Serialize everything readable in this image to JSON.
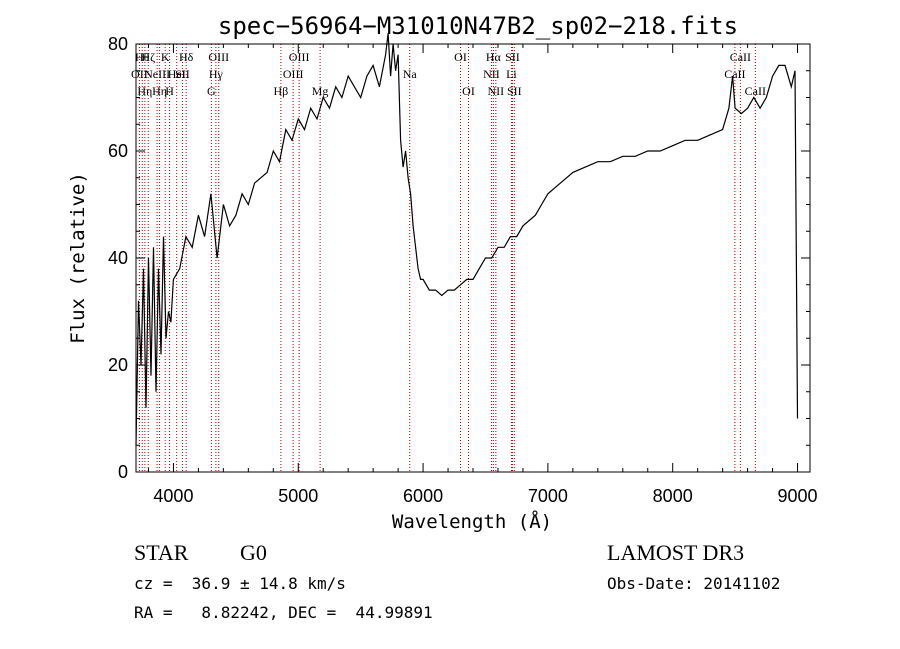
{
  "chart_data": {
    "type": "line",
    "title": "spec−56964−M31010N47B2_sp02−218.fits",
    "xlabel": "Wavelength (Å)",
    "ylabel": "Flux (relative)",
    "xlim": [
      3700,
      9100
    ],
    "ylim": [
      0,
      80
    ],
    "xticks": [
      4000,
      5000,
      6000,
      7000,
      8000,
      9000
    ],
    "yticks": [
      0,
      20,
      40,
      60,
      80
    ],
    "series": [
      {
        "name": "flux",
        "x": [
          3700,
          3720,
          3740,
          3760,
          3780,
          3800,
          3820,
          3840,
          3860,
          3880,
          3900,
          3920,
          3940,
          3960,
          3980,
          4000,
          4050,
          4100,
          4150,
          4200,
          4250,
          4300,
          4350,
          4400,
          4450,
          4500,
          4550,
          4600,
          4650,
          4700,
          4750,
          4800,
          4850,
          4900,
          4950,
          5000,
          5050,
          5100,
          5150,
          5200,
          5250,
          5300,
          5350,
          5400,
          5450,
          5500,
          5550,
          5600,
          5650,
          5700,
          5720,
          5740,
          5760,
          5780,
          5800,
          5820,
          5840,
          5860,
          5880,
          5900,
          5920,
          5940,
          5960,
          5980,
          6000,
          6050,
          6100,
          6150,
          6200,
          6250,
          6300,
          6350,
          6400,
          6450,
          6500,
          6550,
          6600,
          6650,
          6700,
          6750,
          6800,
          6850,
          6900,
          6950,
          7000,
          7100,
          7200,
          7300,
          7400,
          7500,
          7600,
          7700,
          7800,
          7900,
          8000,
          8100,
          8200,
          8300,
          8400,
          8450,
          8480,
          8500,
          8550,
          8600,
          8650,
          8700,
          8750,
          8800,
          8850,
          8900,
          8950,
          8980,
          9000
        ],
        "y": [
          5,
          32,
          20,
          38,
          12,
          40,
          18,
          42,
          15,
          38,
          22,
          44,
          25,
          30,
          28,
          36,
          38,
          44,
          42,
          48,
          44,
          52,
          40,
          50,
          46,
          48,
          52,
          50,
          54,
          55,
          56,
          60,
          58,
          64,
          62,
          66,
          64,
          68,
          66,
          70,
          68,
          72,
          70,
          74,
          72,
          70,
          74,
          76,
          72,
          78,
          82,
          74,
          80,
          75,
          78,
          62,
          57,
          60,
          55,
          52,
          46,
          42,
          38,
          36,
          36,
          34,
          34,
          33,
          34,
          34,
          35,
          36,
          36,
          38,
          40,
          40,
          42,
          42,
          44,
          44,
          46,
          47,
          48,
          50,
          52,
          54,
          56,
          57,
          58,
          58,
          59,
          59,
          60,
          60,
          61,
          62,
          62,
          63,
          64,
          68,
          74,
          68,
          67,
          68,
          70,
          68,
          70,
          74,
          76,
          76,
          72,
          75,
          10
        ]
      }
    ],
    "emission_lines": [
      {
        "wavelength": 3727,
        "label": "OII",
        "row": 2
      },
      {
        "wavelength": 3750,
        "label": "Hθ",
        "row": 1
      },
      {
        "wavelength": 3771,
        "label": "Hη",
        "row": 3
      },
      {
        "wavelength": 3798,
        "label": "Hζ",
        "row": 1
      },
      {
        "wavelength": 3869,
        "label": "NeIII",
        "row": 2
      },
      {
        "wavelength": 3889,
        "label": "Hη",
        "row": 3
      },
      {
        "wavelength": 3934,
        "label": "K",
        "row": 1
      },
      {
        "wavelength": 3969,
        "label": "H",
        "row": 3
      },
      {
        "wavelength": 4026,
        "label": "HeI",
        "row": 2
      },
      {
        "wavelength": 4072,
        "label": "SII",
        "row": 2
      },
      {
        "wavelength": 4102,
        "label": "Hδ",
        "row": 1
      },
      {
        "wavelength": 4304,
        "label": "G",
        "row": 3
      },
      {
        "wavelength": 4340,
        "label": "Hγ",
        "row": 2
      },
      {
        "wavelength": 4363,
        "label": "OIII",
        "row": 1
      },
      {
        "wavelength": 4861,
        "label": "Hβ",
        "row": 3
      },
      {
        "wavelength": 4959,
        "label": "OIII",
        "row": 2
      },
      {
        "wavelength": 5007,
        "label": "OIII",
        "row": 1
      },
      {
        "wavelength": 5175,
        "label": "Mg",
        "row": 3
      },
      {
        "wavelength": 5893,
        "label": "Na",
        "row": 2
      },
      {
        "wavelength": 6300,
        "label": "OI",
        "row": 1
      },
      {
        "wavelength": 6364,
        "label": "OI",
        "row": 3
      },
      {
        "wavelength": 6548,
        "label": "NII",
        "row": 2
      },
      {
        "wavelength": 6563,
        "label": "Hα",
        "row": 1
      },
      {
        "wavelength": 6583,
        "label": "NII",
        "row": 3
      },
      {
        "wavelength": 6708,
        "label": "Li",
        "row": 2
      },
      {
        "wavelength": 6716,
        "label": "SII",
        "row": 1
      },
      {
        "wavelength": 6731,
        "label": "SII",
        "row": 3
      },
      {
        "wavelength": 8498,
        "label": "CaII",
        "row": 2
      },
      {
        "wavelength": 8542,
        "label": "CaII",
        "row": 1
      },
      {
        "wavelength": 8662,
        "label": "CaII",
        "row": 3
      }
    ]
  },
  "info": {
    "classification": "STAR",
    "subclass": "G0",
    "survey": "LAMOST DR3",
    "redshift": "cz =  36.9 ± 14.8 km/s",
    "obs_date": "Obs-Date: 20141102",
    "coords": "RA =   8.82242, DEC =  44.99891"
  }
}
